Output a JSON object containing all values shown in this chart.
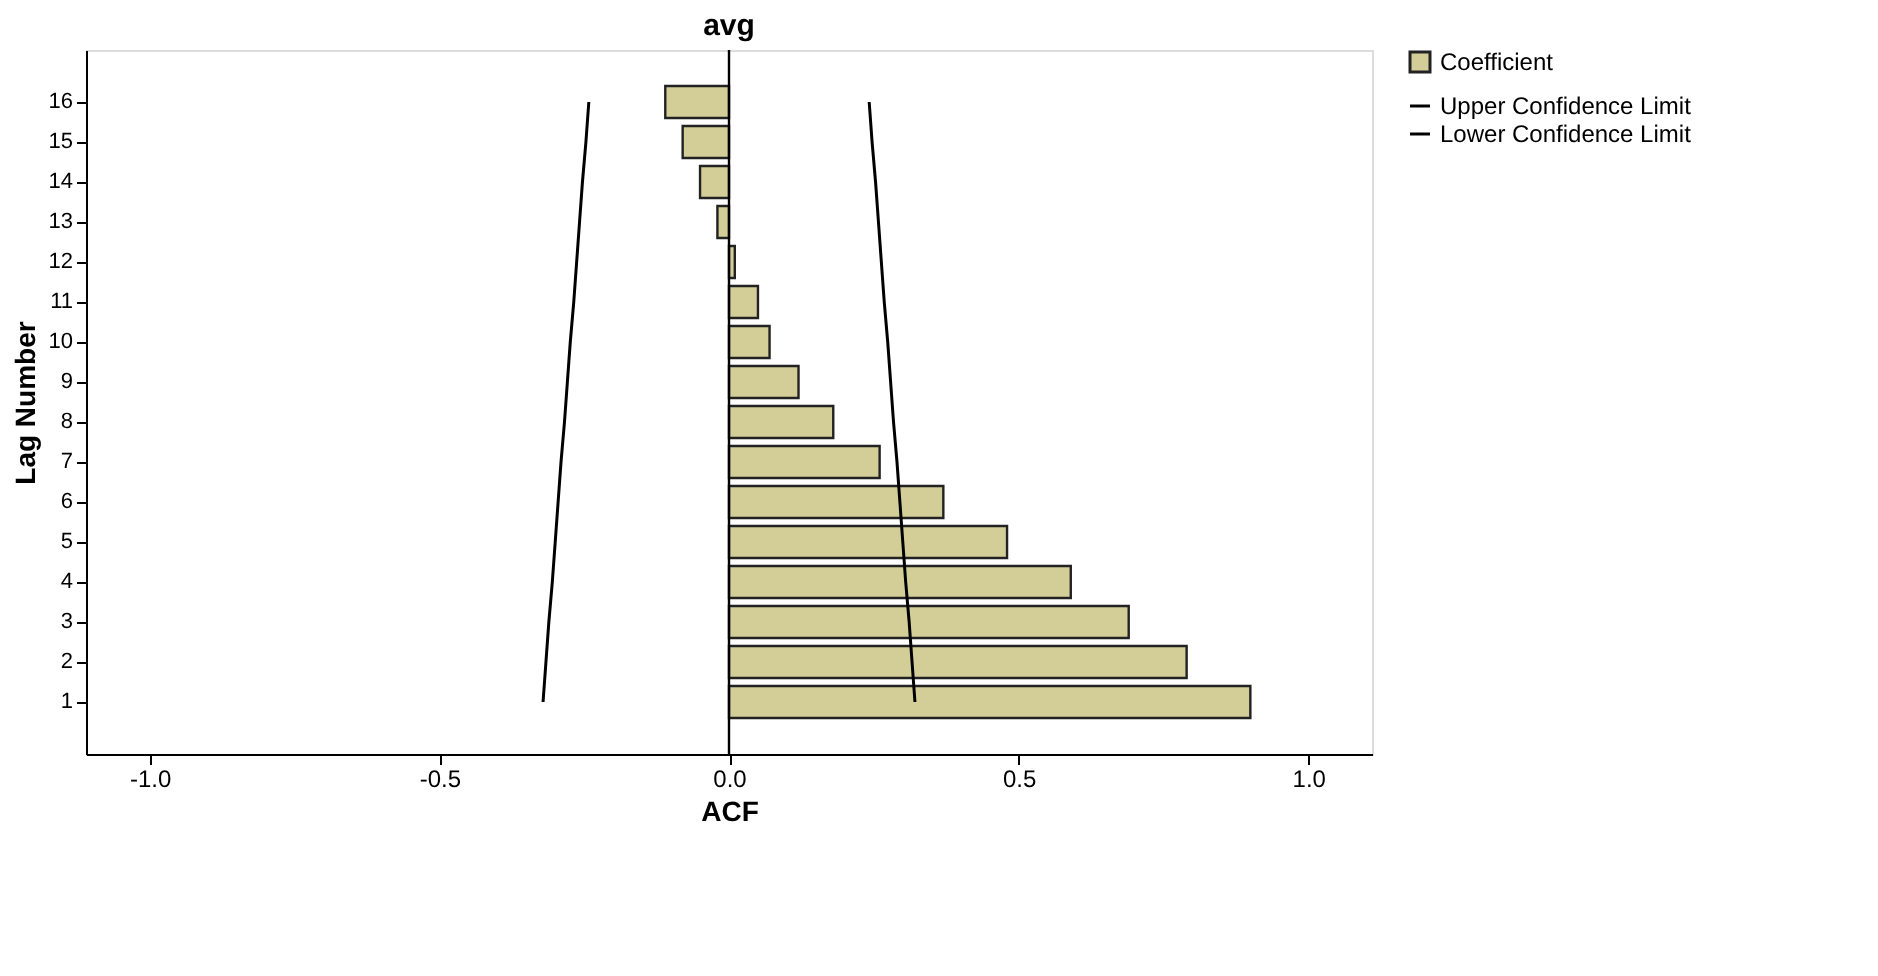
{
  "chart_data": {
    "type": "bar",
    "orientation": "horizontal",
    "title": "avg",
    "xlabel": "ACF",
    "ylabel": "Lag Number",
    "categories": [
      "16",
      "15",
      "14",
      "13",
      "12",
      "11",
      "10",
      "9",
      "8",
      "7",
      "6",
      "5",
      "4",
      "3",
      "2",
      "1"
    ],
    "series": [
      {
        "name": "Coefficient",
        "color": "#d3ce98",
        "values": [
          -0.11,
          -0.08,
          -0.05,
          -0.02,
          0.01,
          0.05,
          0.07,
          0.12,
          0.18,
          0.26,
          0.37,
          0.48,
          0.59,
          0.69,
          0.79,
          0.9
        ]
      },
      {
        "name": "Upper Confidence Limit",
        "type": "line",
        "color": "#000000",
        "values": [
          0.242,
          0.247,
          0.253,
          0.258,
          0.263,
          0.268,
          0.274,
          0.279,
          0.284,
          0.29,
          0.295,
          0.3,
          0.305,
          0.311,
          0.316,
          0.321
        ]
      },
      {
        "name": "Lower Confidence Limit",
        "type": "line",
        "color": "#000000",
        "values": [
          -0.242,
          -0.247,
          -0.253,
          -0.258,
          -0.263,
          -0.268,
          -0.274,
          -0.279,
          -0.284,
          -0.29,
          -0.295,
          -0.3,
          -0.305,
          -0.311,
          -0.316,
          -0.321
        ]
      }
    ],
    "xlim": [
      -1.11,
      1.11
    ],
    "xticks": [
      {
        "value": -1,
        "label": "-1.0"
      },
      {
        "value": -0.5,
        "label": "-0.5"
      },
      {
        "value": 0,
        "label": "0.0"
      },
      {
        "value": 0.5,
        "label": "0.5"
      },
      {
        "value": 1,
        "label": "1.0"
      }
    ],
    "ref_lines": [
      {
        "axis": "x",
        "value": 0
      }
    ],
    "grid": false,
    "legend": "top right"
  }
}
